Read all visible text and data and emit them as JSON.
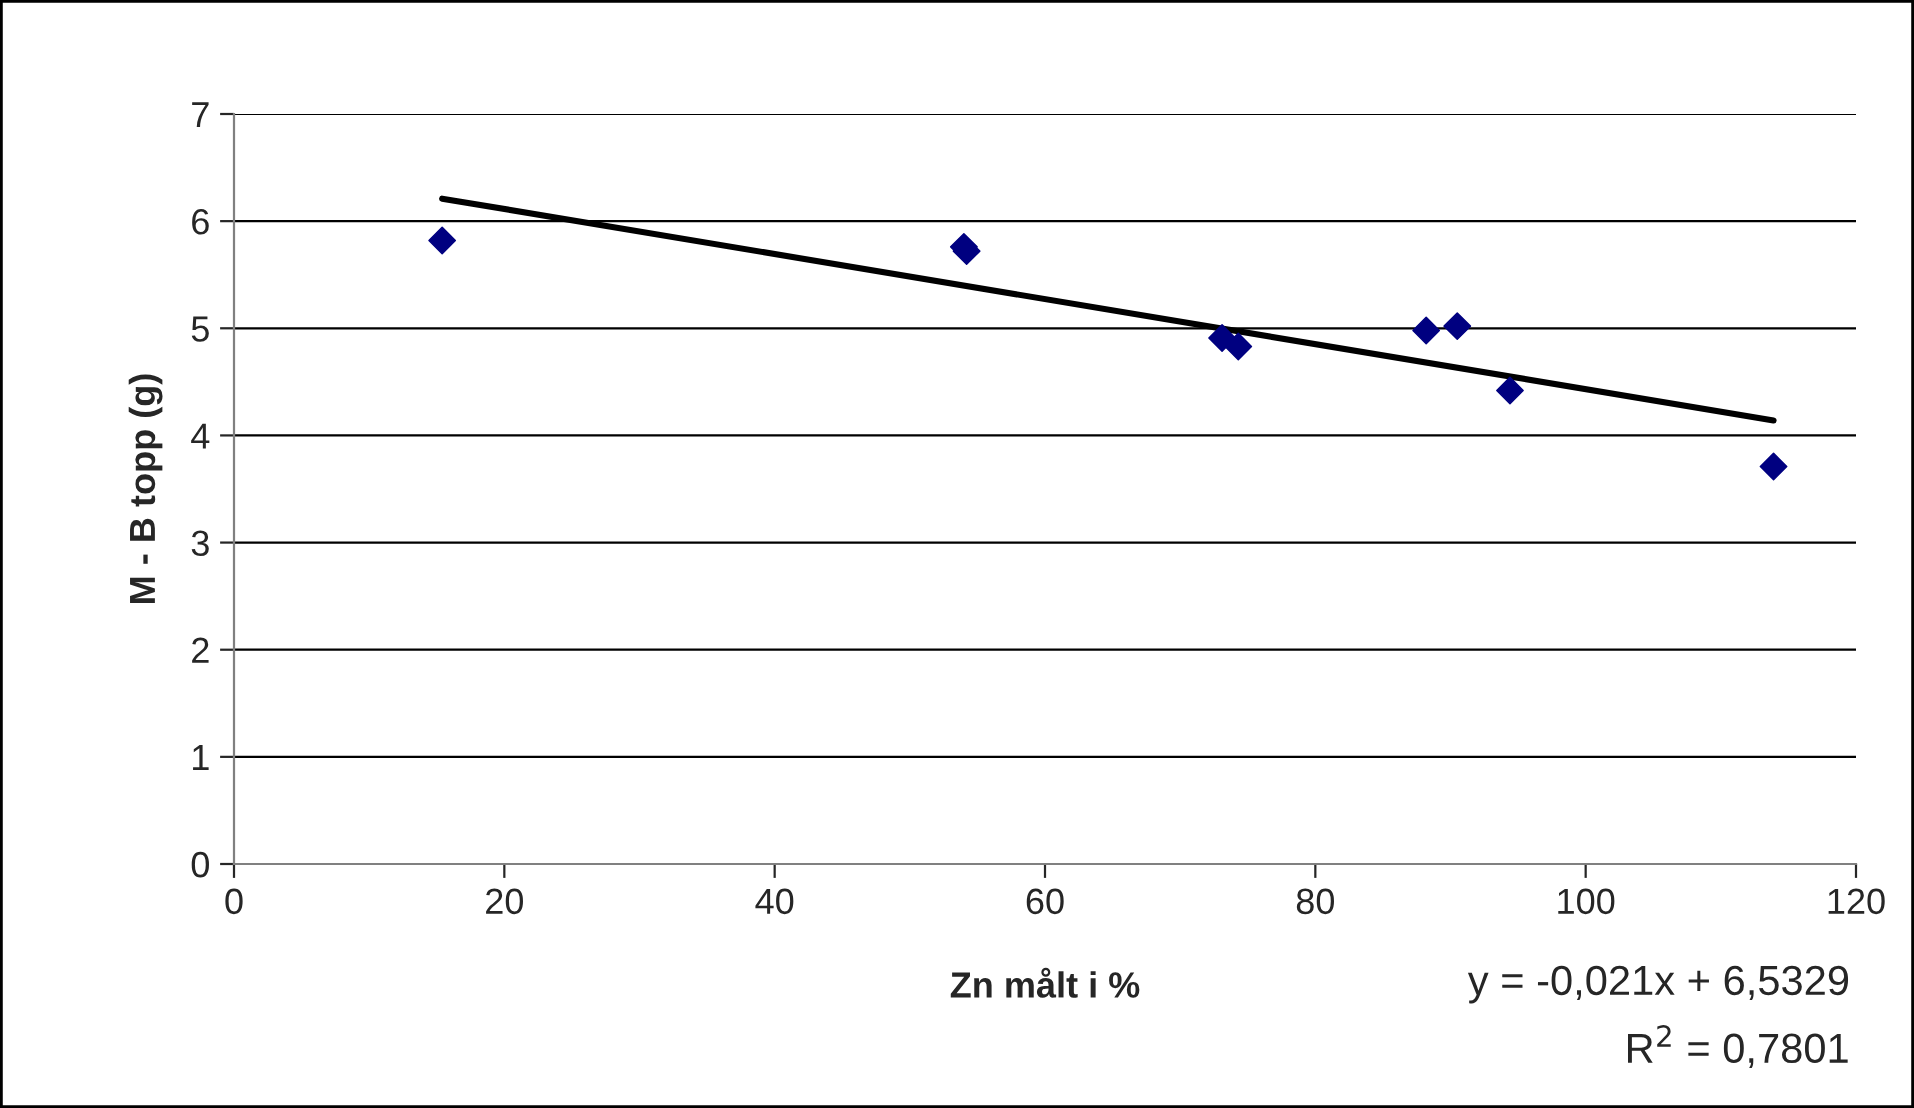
{
  "chart_data": {
    "type": "scatter",
    "xlabel": "Zn målt i %",
    "ylabel": "M - B topp (g)",
    "series": [
      {
        "color": "#000080",
        "marker": "diamond",
        "x": [
          15.4,
          54.0,
          54.2,
          73.1,
          74.3,
          88.2,
          90.5,
          94.4,
          113.9
        ],
        "values": [
          5.82,
          5.76,
          5.72,
          4.91,
          4.83,
          4.98,
          5.02,
          4.42,
          3.71
        ]
      },
      {
        "type": "line",
        "color": "#000000",
        "marker": "none",
        "x": [
          15.4,
          113.9
        ],
        "values": [
          6.21,
          4.14
        ]
      }
    ],
    "xlim": [
      0,
      120
    ],
    "xticks": [
      0,
      20,
      40,
      60,
      80,
      100,
      120
    ],
    "ylim": [
      0,
      7
    ],
    "yticks": [
      0,
      1,
      2,
      3,
      4,
      5,
      6,
      7
    ],
    "grid": "y",
    "annotations": [
      "y = -0,021x + 6,5329",
      "R$^{2}$ = 0,7801"
    ]
  }
}
